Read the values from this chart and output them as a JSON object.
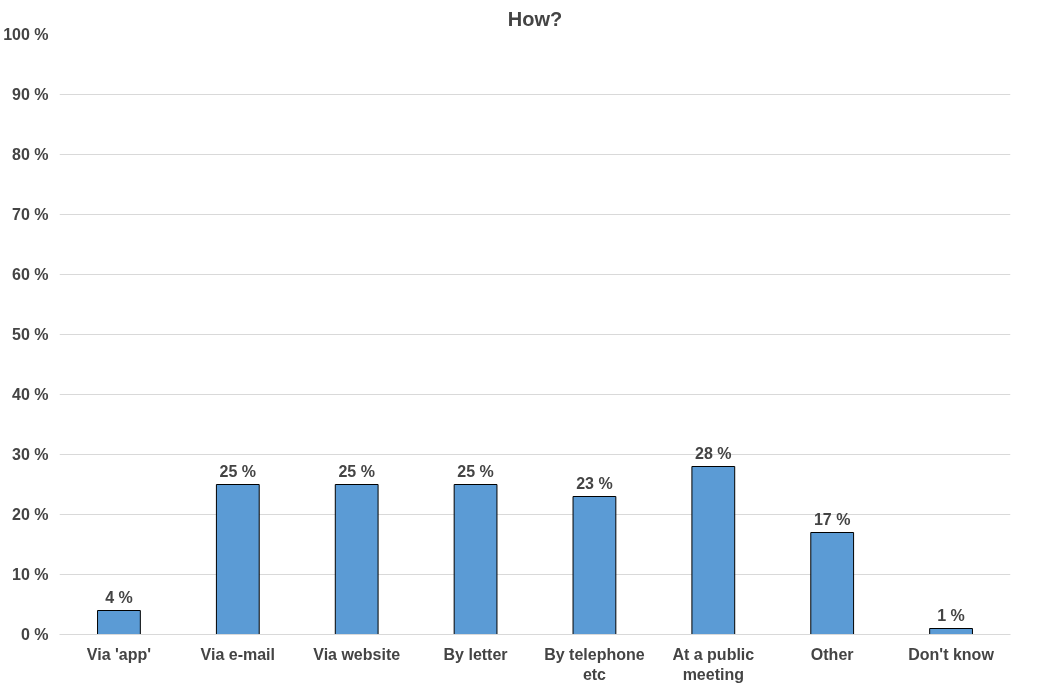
{
  "chart_data": {
    "type": "bar",
    "title": "How?",
    "categories": [
      "Via 'app'",
      "Via e-mail",
      "Via website",
      "By letter",
      "By telephone etc",
      "At a public meeting",
      "Other",
      "Don't know"
    ],
    "values": [
      4,
      25,
      25,
      25,
      23,
      28,
      17,
      1
    ],
    "value_labels": [
      "4 %",
      "25 %",
      "25 %",
      "25 %",
      "23 %",
      "28 %",
      "17 %",
      "1 %"
    ],
    "color": "#5b9bd5",
    "ylim": [
      0,
      100
    ],
    "yticks": [
      {
        "value": 0,
        "label": "0 %"
      },
      {
        "value": 10,
        "label": "10 %"
      },
      {
        "value": 20,
        "label": "20 %"
      },
      {
        "value": 30,
        "label": "30 %"
      },
      {
        "value": 40,
        "label": "40 %"
      },
      {
        "value": 50,
        "label": "50 %"
      },
      {
        "value": 60,
        "label": "60 %"
      },
      {
        "value": 70,
        "label": "70 %"
      },
      {
        "value": 80,
        "label": "80 %"
      },
      {
        "value": 90,
        "label": "90 %"
      },
      {
        "value": 100,
        "label": "100 %"
      }
    ],
    "grid": "y"
  }
}
